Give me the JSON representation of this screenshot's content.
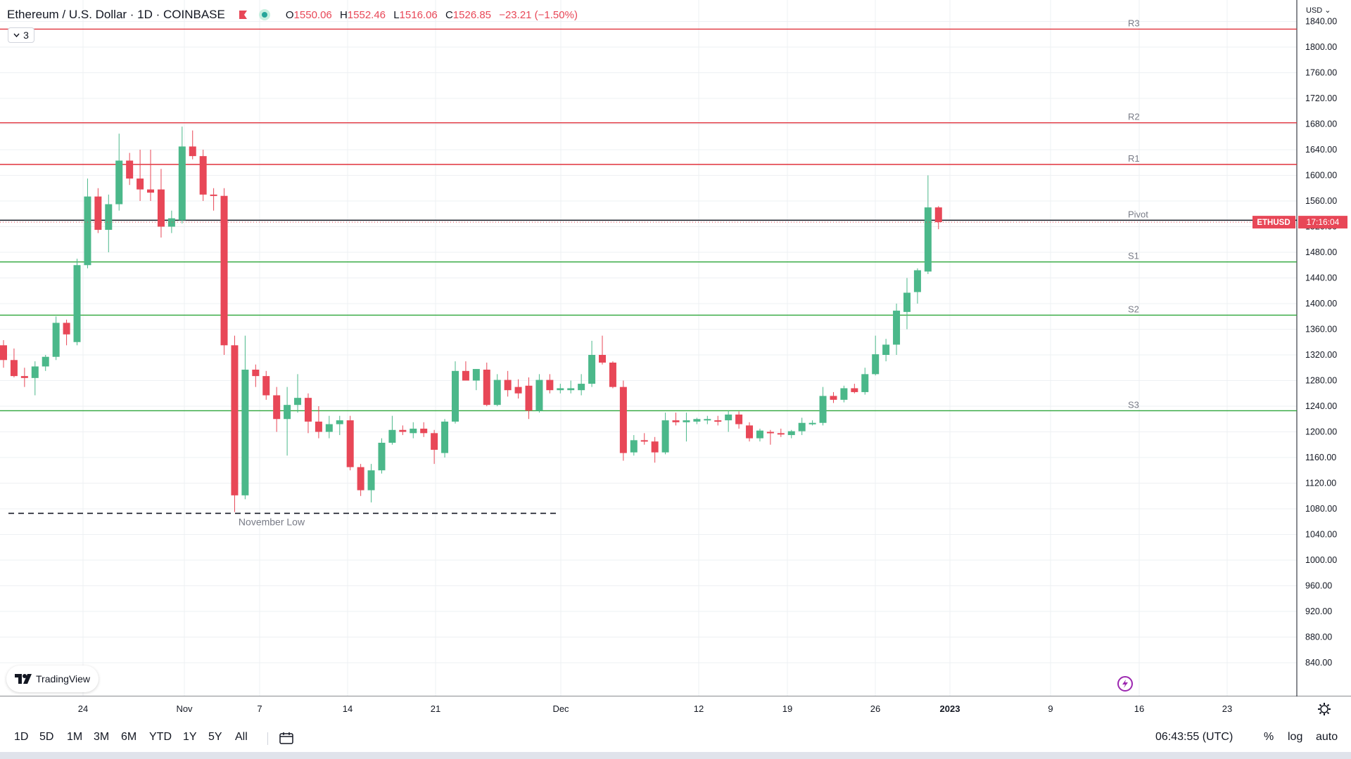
{
  "header": {
    "title": "Ethereum / U.S. Dollar · 1D · COINBASE",
    "open_label": "O",
    "open": "1550.06",
    "high_label": "H",
    "high": "1552.46",
    "low_label": "L",
    "low": "1516.06",
    "close_label": "C",
    "close": "1526.85",
    "change": "−23.21 (−1.50%)",
    "indicator_count": "3"
  },
  "axis": {
    "currency": "USD",
    "price_tag": "ETHUSD",
    "countdown": "17:16:04"
  },
  "annotations": {
    "november_low": "November Low"
  },
  "branding": {
    "logo_text": "TradingView"
  },
  "toolbar": {
    "ranges": [
      "1D",
      "5D",
      "1M",
      "3M",
      "6M",
      "YTD",
      "1Y",
      "5Y",
      "All"
    ],
    "clock": "06:43:55 (UTC)",
    "percent": "%",
    "log": "log",
    "auto": "auto"
  },
  "colors": {
    "up": "#4bb88a",
    "down": "#e84757",
    "resistance": "#e0323c",
    "support": "#2ea63a",
    "pivot": "#131722",
    "grid": "#eef0f3"
  },
  "chart_data": {
    "type": "candlestick",
    "title": "Ethereum / U.S. Dollar · 1D · COINBASE",
    "ylim": [
      840,
      1880
    ],
    "y_ticks": [
      840,
      880,
      920,
      960,
      1000,
      1040,
      1080,
      1120,
      1160,
      1200,
      1240,
      1280,
      1320,
      1360,
      1400,
      1440,
      1480,
      1520,
      1560,
      1600,
      1640,
      1680,
      1720,
      1760,
      1800,
      1840,
      1880
    ],
    "x_ticks": [
      "24",
      "Nov",
      "7",
      "14",
      "21",
      "Dec",
      "12",
      "19",
      "26",
      "2023",
      "9",
      "16",
      "23"
    ],
    "levels": [
      {
        "label": "R3",
        "value": 1828,
        "kind": "resistance"
      },
      {
        "label": "R2",
        "value": 1682,
        "kind": "resistance"
      },
      {
        "label": "R1",
        "value": 1617,
        "kind": "resistance"
      },
      {
        "label": "Pivot",
        "value": 1530,
        "kind": "pivot"
      },
      {
        "label": "S1",
        "value": 1465,
        "kind": "support"
      },
      {
        "label": "S2",
        "value": 1382,
        "kind": "support"
      },
      {
        "label": "S3",
        "value": 1233,
        "kind": "support"
      }
    ],
    "november_low": 1073,
    "candles": [
      {
        "o": 1335,
        "h": 1343,
        "l": 1300,
        "c": 1312
      },
      {
        "o": 1312,
        "h": 1330,
        "l": 1285,
        "c": 1287
      },
      {
        "o": 1287,
        "h": 1300,
        "l": 1270,
        "c": 1284
      },
      {
        "o": 1284,
        "h": 1310,
        "l": 1257,
        "c": 1302
      },
      {
        "o": 1302,
        "h": 1320,
        "l": 1295,
        "c": 1317
      },
      {
        "o": 1317,
        "h": 1380,
        "l": 1312,
        "c": 1370
      },
      {
        "o": 1370,
        "h": 1375,
        "l": 1335,
        "c": 1352
      },
      {
        "o": 1340,
        "h": 1470,
        "l": 1335,
        "c": 1460
      },
      {
        "o": 1460,
        "h": 1595,
        "l": 1455,
        "c": 1567
      },
      {
        "o": 1567,
        "h": 1580,
        "l": 1510,
        "c": 1515
      },
      {
        "o": 1515,
        "h": 1570,
        "l": 1480,
        "c": 1555
      },
      {
        "o": 1555,
        "h": 1665,
        "l": 1545,
        "c": 1623
      },
      {
        "o": 1623,
        "h": 1635,
        "l": 1585,
        "c": 1595
      },
      {
        "o": 1595,
        "h": 1640,
        "l": 1560,
        "c": 1578
      },
      {
        "o": 1578,
        "h": 1640,
        "l": 1560,
        "c": 1573
      },
      {
        "o": 1578,
        "h": 1610,
        "l": 1503,
        "c": 1520
      },
      {
        "o": 1520,
        "h": 1545,
        "l": 1510,
        "c": 1533
      },
      {
        "o": 1530,
        "h": 1676,
        "l": 1525,
        "c": 1645
      },
      {
        "o": 1645,
        "h": 1670,
        "l": 1625,
        "c": 1630
      },
      {
        "o": 1630,
        "h": 1640,
        "l": 1560,
        "c": 1570
      },
      {
        "o": 1570,
        "h": 1580,
        "l": 1545,
        "c": 1568
      },
      {
        "o": 1568,
        "h": 1580,
        "l": 1320,
        "c": 1335
      },
      {
        "o": 1335,
        "h": 1350,
        "l": 1075,
        "c": 1101
      },
      {
        "o": 1101,
        "h": 1350,
        "l": 1095,
        "c": 1297
      },
      {
        "o": 1297,
        "h": 1305,
        "l": 1270,
        "c": 1287
      },
      {
        "o": 1287,
        "h": 1295,
        "l": 1250,
        "c": 1257
      },
      {
        "o": 1257,
        "h": 1270,
        "l": 1200,
        "c": 1220
      },
      {
        "o": 1220,
        "h": 1270,
        "l": 1163,
        "c": 1242
      },
      {
        "o": 1242,
        "h": 1290,
        "l": 1230,
        "c": 1253
      },
      {
        "o": 1253,
        "h": 1260,
        "l": 1198,
        "c": 1216
      },
      {
        "o": 1216,
        "h": 1240,
        "l": 1190,
        "c": 1200
      },
      {
        "o": 1200,
        "h": 1225,
        "l": 1190,
        "c": 1212
      },
      {
        "o": 1212,
        "h": 1225,
        "l": 1195,
        "c": 1218
      },
      {
        "o": 1218,
        "h": 1225,
        "l": 1140,
        "c": 1145
      },
      {
        "o": 1145,
        "h": 1150,
        "l": 1100,
        "c": 1109
      },
      {
        "o": 1109,
        "h": 1150,
        "l": 1090,
        "c": 1140
      },
      {
        "o": 1140,
        "h": 1190,
        "l": 1135,
        "c": 1183
      },
      {
        "o": 1183,
        "h": 1225,
        "l": 1180,
        "c": 1203
      },
      {
        "o": 1203,
        "h": 1210,
        "l": 1195,
        "c": 1200
      },
      {
        "o": 1198,
        "h": 1215,
        "l": 1190,
        "c": 1205
      },
      {
        "o": 1205,
        "h": 1215,
        "l": 1192,
        "c": 1198
      },
      {
        "o": 1198,
        "h": 1203,
        "l": 1150,
        "c": 1172
      },
      {
        "o": 1167,
        "h": 1220,
        "l": 1160,
        "c": 1216
      },
      {
        "o": 1216,
        "h": 1310,
        "l": 1213,
        "c": 1295
      },
      {
        "o": 1295,
        "h": 1310,
        "l": 1280,
        "c": 1280
      },
      {
        "o": 1280,
        "h": 1298,
        "l": 1265,
        "c": 1298
      },
      {
        "o": 1297,
        "h": 1308,
        "l": 1240,
        "c": 1242
      },
      {
        "o": 1242,
        "h": 1290,
        "l": 1240,
        "c": 1281
      },
      {
        "o": 1281,
        "h": 1295,
        "l": 1255,
        "c": 1265
      },
      {
        "o": 1270,
        "h": 1282,
        "l": 1252,
        "c": 1260
      },
      {
        "o": 1272,
        "h": 1285,
        "l": 1220,
        "c": 1233
      },
      {
        "o": 1233,
        "h": 1290,
        "l": 1230,
        "c": 1281
      },
      {
        "o": 1281,
        "h": 1290,
        "l": 1260,
        "c": 1265
      },
      {
        "o": 1265,
        "h": 1275,
        "l": 1260,
        "c": 1268
      },
      {
        "o": 1265,
        "h": 1280,
        "l": 1260,
        "c": 1268
      },
      {
        "o": 1265,
        "h": 1290,
        "l": 1257,
        "c": 1275
      },
      {
        "o": 1275,
        "h": 1342,
        "l": 1270,
        "c": 1320
      },
      {
        "o": 1320,
        "h": 1350,
        "l": 1305,
        "c": 1308
      },
      {
        "o": 1308,
        "h": 1310,
        "l": 1268,
        "c": 1270
      },
      {
        "o": 1270,
        "h": 1280,
        "l": 1155,
        "c": 1167
      },
      {
        "o": 1168,
        "h": 1195,
        "l": 1163,
        "c": 1187
      },
      {
        "o": 1187,
        "h": 1198,
        "l": 1180,
        "c": 1185
      },
      {
        "o": 1185,
        "h": 1192,
        "l": 1152,
        "c": 1168
      },
      {
        "o": 1168,
        "h": 1230,
        "l": 1165,
        "c": 1218
      },
      {
        "o": 1218,
        "h": 1230,
        "l": 1210,
        "c": 1215
      },
      {
        "o": 1215,
        "h": 1230,
        "l": 1185,
        "c": 1218
      },
      {
        "o": 1216,
        "h": 1222,
        "l": 1212,
        "c": 1220
      },
      {
        "o": 1218,
        "h": 1225,
        "l": 1212,
        "c": 1220
      },
      {
        "o": 1218,
        "h": 1225,
        "l": 1210,
        "c": 1217
      },
      {
        "o": 1218,
        "h": 1233,
        "l": 1200,
        "c": 1227
      },
      {
        "o": 1227,
        "h": 1232,
        "l": 1205,
        "c": 1212
      },
      {
        "o": 1210,
        "h": 1215,
        "l": 1185,
        "c": 1190
      },
      {
        "o": 1190,
        "h": 1205,
        "l": 1185,
        "c": 1202
      },
      {
        "o": 1200,
        "h": 1203,
        "l": 1180,
        "c": 1199
      },
      {
        "o": 1198,
        "h": 1205,
        "l": 1192,
        "c": 1197
      },
      {
        "o": 1195,
        "h": 1203,
        "l": 1190,
        "c": 1201
      },
      {
        "o": 1201,
        "h": 1222,
        "l": 1195,
        "c": 1214
      },
      {
        "o": 1214,
        "h": 1218,
        "l": 1210,
        "c": 1214
      },
      {
        "o": 1214,
        "h": 1270,
        "l": 1210,
        "c": 1256
      },
      {
        "o": 1256,
        "h": 1262,
        "l": 1245,
        "c": 1250
      },
      {
        "o": 1250,
        "h": 1272,
        "l": 1246,
        "c": 1268
      },
      {
        "o": 1268,
        "h": 1275,
        "l": 1260,
        "c": 1262
      },
      {
        "o": 1262,
        "h": 1300,
        "l": 1258,
        "c": 1290
      },
      {
        "o": 1290,
        "h": 1350,
        "l": 1288,
        "c": 1321
      },
      {
        "o": 1320,
        "h": 1345,
        "l": 1310,
        "c": 1336
      },
      {
        "o": 1336,
        "h": 1400,
        "l": 1320,
        "c": 1389
      },
      {
        "o": 1387,
        "h": 1440,
        "l": 1360,
        "c": 1417
      },
      {
        "o": 1418,
        "h": 1455,
        "l": 1400,
        "c": 1452
      },
      {
        "o": 1450,
        "h": 1600,
        "l": 1446,
        "c": 1550
      },
      {
        "o": 1550,
        "h": 1552,
        "l": 1516,
        "c": 1527
      }
    ]
  }
}
